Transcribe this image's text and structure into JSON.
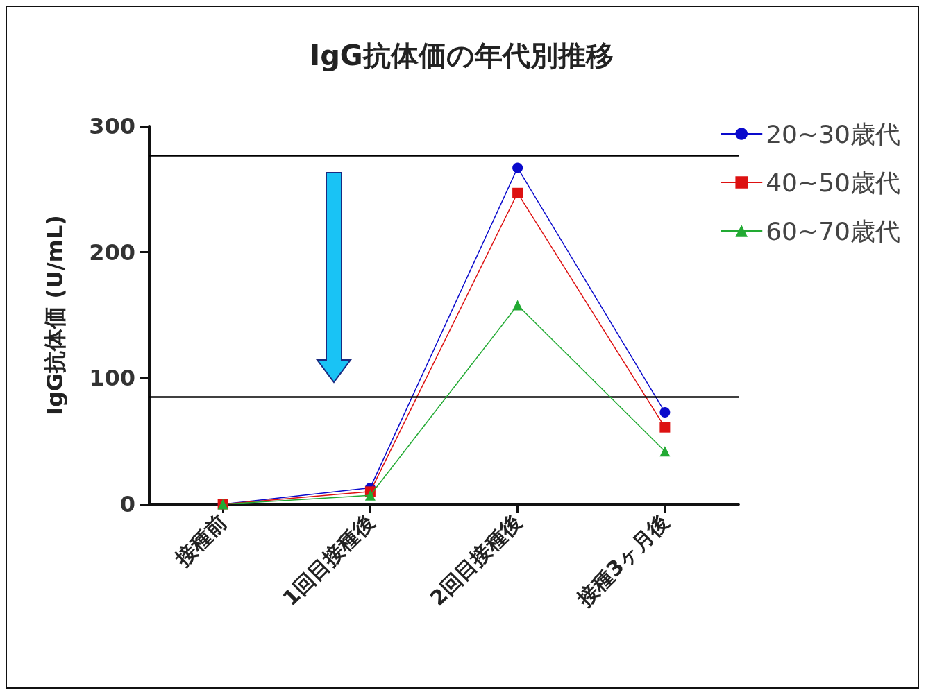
{
  "chart_data": {
    "type": "line",
    "title": "IgG抗体価の年代別推移",
    "ylabel": "IgG抗体価 (U/mL)",
    "categories": [
      "接種前",
      "1回目接種後",
      "2回目接種後",
      "接種3ヶ月後"
    ],
    "series": [
      {
        "name": "20~30歳代",
        "color": "#0a0acc",
        "marker": "circle",
        "values": [
          0,
          13,
          267,
          73
        ]
      },
      {
        "name": "40~50歳代",
        "color": "#dd1111",
        "marker": "square",
        "values": [
          0,
          10,
          247,
          61
        ]
      },
      {
        "name": "60~70歳代",
        "color": "#22aa33",
        "marker": "triangle",
        "values": [
          0,
          7,
          158,
          42
        ]
      }
    ],
    "ylim": [
      0,
      300
    ],
    "yticks": [
      0,
      100,
      200,
      300
    ],
    "ref_lines": [
      {
        "axis": "y",
        "value": 277,
        "color": "#000000"
      },
      {
        "axis": "y",
        "value": 85,
        "color": "#000000"
      }
    ],
    "legend": "top right",
    "grid": false
  }
}
